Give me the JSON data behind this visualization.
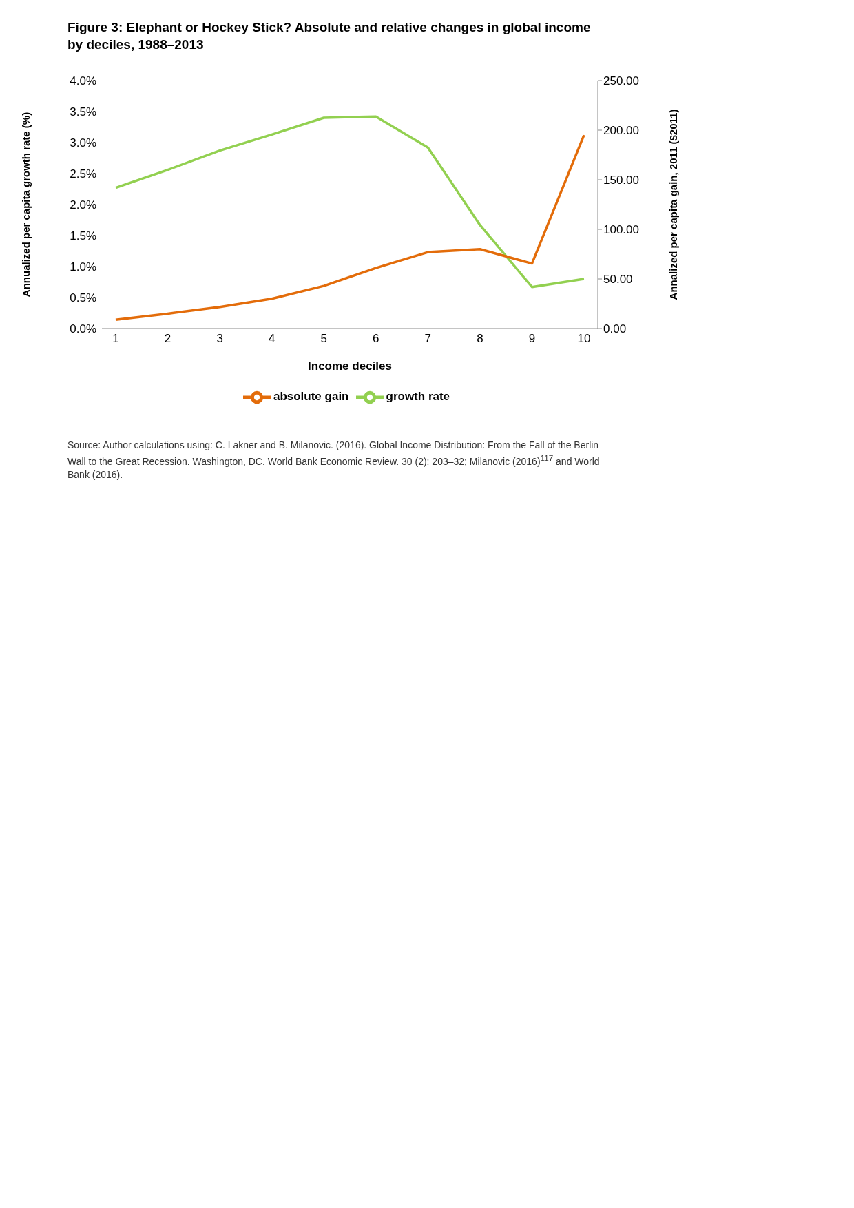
{
  "chart_data": {
    "type": "line",
    "title": "Figure 3: Elephant or Hockey Stick? Absolute and relative changes in global income by deciles, 1988–2013",
    "xlabel": "Income deciles",
    "ylabel": "Annualized per capita growth rate (%)",
    "y2label": "Annalized per capita gain, 2011 ($2011)",
    "categories": [
      "1",
      "2",
      "3",
      "4",
      "5",
      "6",
      "7",
      "8",
      "9",
      "10"
    ],
    "series": [
      {
        "name": "growth rate",
        "color": "#92d050",
        "values": [
          2.27,
          2.56,
          2.87,
          3.13,
          3.4,
          3.42,
          2.92,
          1.67,
          0.67,
          0.8
        ]
      },
      {
        "name": "absolute gain",
        "color": "#e36c0a",
        "axis": "y2",
        "values": [
          8.8,
          15,
          21.7,
          30,
          43,
          61,
          77,
          80,
          65.5,
          195
        ]
      }
    ],
    "ylim": [
      0,
      4
    ],
    "yticks": [
      {
        "value": 0,
        "label": "0.0%"
      },
      {
        "value": 0.5,
        "label": "0.5%"
      },
      {
        "value": 1,
        "label": "1.0%"
      },
      {
        "value": 1.5,
        "label": "1.5%"
      },
      {
        "value": 2,
        "label": "2.0%"
      },
      {
        "value": 2.5,
        "label": "2.5%"
      },
      {
        "value": 3,
        "label": "3.0%"
      },
      {
        "value": 3.5,
        "label": "3.5%"
      },
      {
        "value": 4,
        "label": "4.0%"
      }
    ],
    "y2lim": [
      0,
      250
    ],
    "y2ticks": [
      {
        "value": 0,
        "label": "0.00"
      },
      {
        "value": 50,
        "label": "50.00"
      },
      {
        "value": 100,
        "label": "100.00"
      },
      {
        "value": 150,
        "label": "150.00"
      },
      {
        "value": 200,
        "label": "200.00"
      },
      {
        "value": 250,
        "label": "250.00"
      }
    ],
    "grid": false,
    "legend": "bottom",
    "marker": "none",
    "line_style": "solid",
    "annotations": [
      "Source: Author calculations using: C. Lakner and B. Milanovic. (2016). Global Income Distribution: From the Fall of the Berlin Wall to the Great Recession. Washington, DC. World Bank Economic Review. 30 (2): 203–32; Milanovic (2016)$^{117}$ and World Bank (2016)."
    ]
  }
}
